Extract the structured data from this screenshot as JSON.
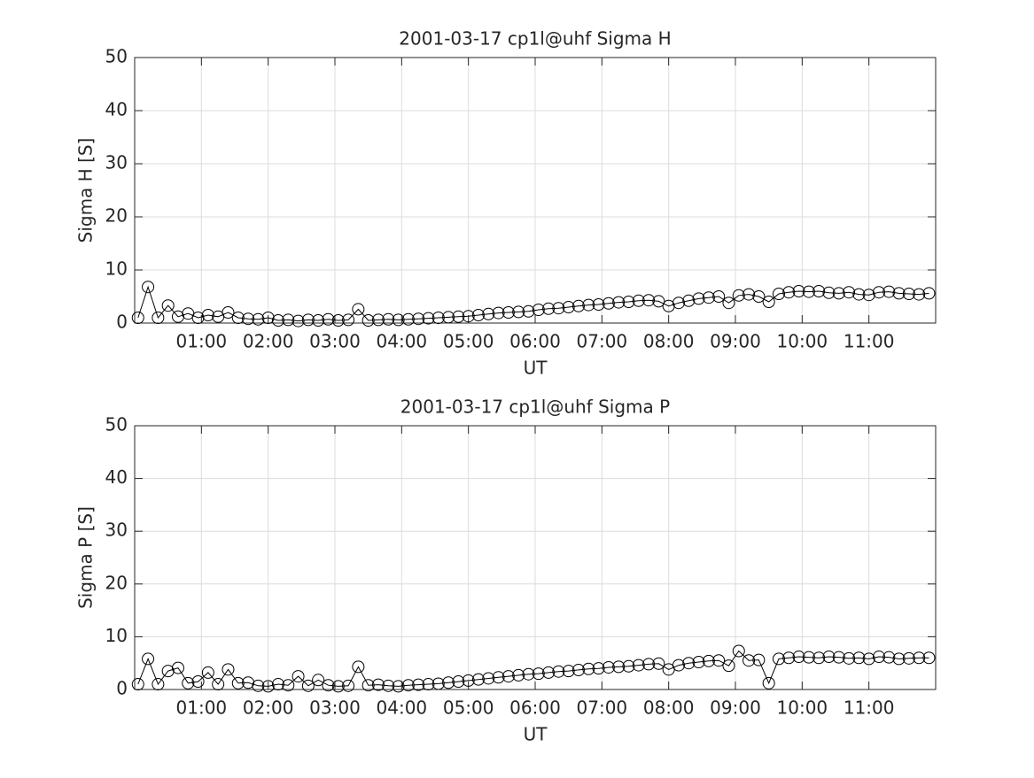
{
  "chart_data": [
    {
      "type": "line",
      "title": "2001-03-17  cp1l@uhf Sigma H",
      "xlabel": "UT",
      "ylabel": "Sigma H [S]",
      "color": "#000000",
      "grid": true,
      "xlim": [
        0,
        12
      ],
      "ylim": [
        0,
        50
      ],
      "xticks": [
        {
          "value": 1,
          "label": "01:00"
        },
        {
          "value": 2,
          "label": "02:00"
        },
        {
          "value": 3,
          "label": "03:00"
        },
        {
          "value": 4,
          "label": "04:00"
        },
        {
          "value": 5,
          "label": "05:00"
        },
        {
          "value": 6,
          "label": "06:00"
        },
        {
          "value": 7,
          "label": "07:00"
        },
        {
          "value": 8,
          "label": "08:00"
        },
        {
          "value": 9,
          "label": "09:00"
        },
        {
          "value": 10,
          "label": "10:00"
        },
        {
          "value": 11,
          "label": "11:00"
        }
      ],
      "yticks": [
        0,
        10,
        20,
        30,
        40,
        50
      ],
      "x": [
        0.05,
        0.2,
        0.35,
        0.5,
        0.65,
        0.8,
        0.95,
        1.1,
        1.25,
        1.4,
        1.55,
        1.7,
        1.85,
        2.0,
        2.15,
        2.3,
        2.45,
        2.6,
        2.75,
        2.9,
        3.05,
        3.2,
        3.35,
        3.5,
        3.65,
        3.8,
        3.95,
        4.1,
        4.25,
        4.4,
        4.55,
        4.7,
        4.85,
        5.0,
        5.15,
        5.3,
        5.45,
        5.6,
        5.75,
        5.9,
        6.05,
        6.2,
        6.35,
        6.5,
        6.65,
        6.8,
        6.95,
        7.1,
        7.25,
        7.4,
        7.55,
        7.7,
        7.85,
        8.0,
        8.15,
        8.3,
        8.45,
        8.6,
        8.75,
        8.9,
        9.05,
        9.2,
        9.35,
        9.5,
        9.65,
        9.8,
        9.95,
        10.1,
        10.25,
        10.4,
        10.55,
        10.7,
        10.85,
        11.0,
        11.15,
        11.3,
        11.45,
        11.6,
        11.75,
        11.9
      ],
      "values": [
        1.0,
        6.8,
        1.0,
        3.3,
        1.2,
        1.8,
        1.0,
        1.5,
        1.2,
        2.0,
        1.0,
        0.8,
        0.7,
        1.0,
        0.5,
        0.6,
        0.4,
        0.6,
        0.5,
        0.7,
        0.5,
        0.6,
        2.6,
        0.5,
        0.6,
        0.7,
        0.6,
        0.7,
        0.8,
        0.9,
        1.0,
        1.1,
        1.2,
        1.3,
        1.5,
        1.7,
        1.9,
        2.0,
        2.1,
        2.2,
        2.5,
        2.7,
        2.8,
        3.0,
        3.2,
        3.4,
        3.5,
        3.7,
        3.9,
        4.0,
        4.2,
        4.3,
        4.1,
        3.2,
        3.8,
        4.2,
        4.6,
        4.8,
        5.0,
        3.8,
        5.2,
        5.4,
        5.0,
        4.0,
        5.5,
        5.8,
        6.0,
        5.9,
        6.0,
        5.7,
        5.6,
        5.8,
        5.4,
        5.3,
        5.8,
        5.9,
        5.6,
        5.5,
        5.4,
        5.6
      ]
    },
    {
      "type": "line",
      "title": "2001-03-17  cp1l@uhf Sigma P",
      "xlabel": "UT",
      "ylabel": "Sigma P [S]",
      "color": "#000000",
      "grid": true,
      "xlim": [
        0,
        12
      ],
      "ylim": [
        0,
        50
      ],
      "xticks": [
        {
          "value": 1,
          "label": "01:00"
        },
        {
          "value": 2,
          "label": "02:00"
        },
        {
          "value": 3,
          "label": "03:00"
        },
        {
          "value": 4,
          "label": "04:00"
        },
        {
          "value": 5,
          "label": "05:00"
        },
        {
          "value": 6,
          "label": "06:00"
        },
        {
          "value": 7,
          "label": "07:00"
        },
        {
          "value": 8,
          "label": "08:00"
        },
        {
          "value": 9,
          "label": "09:00"
        },
        {
          "value": 10,
          "label": "10:00"
        },
        {
          "value": 11,
          "label": "11:00"
        }
      ],
      "yticks": [
        0,
        10,
        20,
        30,
        40,
        50
      ],
      "x": [
        0.05,
        0.2,
        0.35,
        0.5,
        0.65,
        0.8,
        0.95,
        1.1,
        1.25,
        1.4,
        1.55,
        1.7,
        1.85,
        2.0,
        2.15,
        2.3,
        2.45,
        2.6,
        2.75,
        2.9,
        3.05,
        3.2,
        3.35,
        3.5,
        3.65,
        3.8,
        3.95,
        4.1,
        4.25,
        4.4,
        4.55,
        4.7,
        4.85,
        5.0,
        5.15,
        5.3,
        5.45,
        5.6,
        5.75,
        5.9,
        6.05,
        6.2,
        6.35,
        6.5,
        6.65,
        6.8,
        6.95,
        7.1,
        7.25,
        7.4,
        7.55,
        7.7,
        7.85,
        8.0,
        8.15,
        8.3,
        8.45,
        8.6,
        8.75,
        8.9,
        9.05,
        9.2,
        9.35,
        9.5,
        9.65,
        9.8,
        9.95,
        10.1,
        10.25,
        10.4,
        10.55,
        10.7,
        10.85,
        11.0,
        11.15,
        11.3,
        11.45,
        11.6,
        11.75,
        11.9
      ],
      "values": [
        1.0,
        5.8,
        1.0,
        3.5,
        4.1,
        1.2,
        1.5,
        3.2,
        1.0,
        3.8,
        1.2,
        1.3,
        0.7,
        0.6,
        1.0,
        0.8,
        2.5,
        0.7,
        1.8,
        0.8,
        0.6,
        0.7,
        4.3,
        0.8,
        0.9,
        0.7,
        0.6,
        0.8,
        0.9,
        1.0,
        1.1,
        1.3,
        1.5,
        1.7,
        1.9,
        2.1,
        2.3,
        2.5,
        2.7,
        2.9,
        3.0,
        3.2,
        3.4,
        3.5,
        3.7,
        3.9,
        4.0,
        4.2,
        4.3,
        4.4,
        4.6,
        4.8,
        4.9,
        3.8,
        4.6,
        5.0,
        5.2,
        5.4,
        5.5,
        4.5,
        7.3,
        5.5,
        5.6,
        1.2,
        5.8,
        6.0,
        6.2,
        6.1,
        6.0,
        6.2,
        6.1,
        5.9,
        6.0,
        5.8,
        6.2,
        6.1,
        5.8,
        5.9,
        6.0,
        6.0
      ]
    }
  ]
}
